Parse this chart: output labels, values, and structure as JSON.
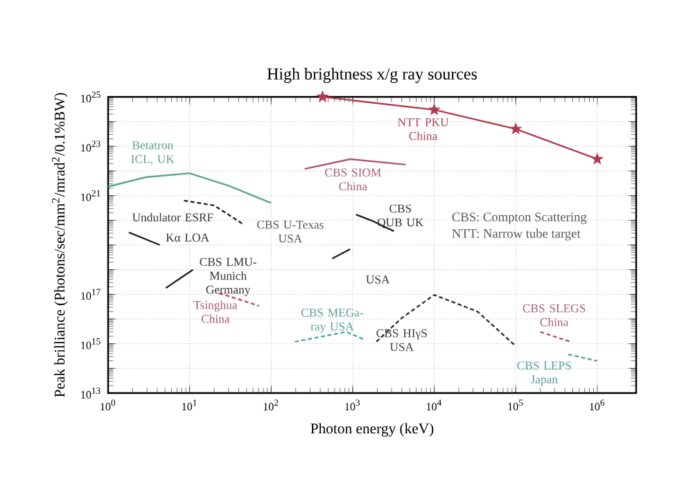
{
  "chart_data": {
    "type": "line",
    "title": "High brightness x/g ray sources",
    "xlabel": "Photon energy (keV)",
    "ylabel": "Peak brilliance (Photons/sec/mm$^{2}$/mrad$^{2}$/0.1%BW)",
    "log": "xy",
    "grid": true,
    "xlim": [
      1,
      3000000
    ],
    "ylim": [
      10000000000000.0,
      1e+25
    ],
    "xticks": [
      {
        "value": 1,
        "label": "10$^{0}$"
      },
      {
        "value": 10,
        "label": "10$^{1}$"
      },
      {
        "value": 100,
        "label": "10$^{2}$"
      },
      {
        "value": 1000,
        "label": "10$^{3}$"
      },
      {
        "value": 10000,
        "label": "10$^{4}$"
      },
      {
        "value": 100000,
        "label": "10$^{5}$"
      },
      {
        "value": 1000000,
        "label": "10$^{6}$"
      }
    ],
    "yticks": [
      {
        "value": 10000000000000.0,
        "label": "10$^{13}$"
      },
      {
        "value": 100000000000000.0,
        "label": null
      },
      {
        "value": 1000000000000000.0,
        "label": "10$^{15}$"
      },
      {
        "value": 1e+16,
        "label": null
      },
      {
        "value": 1e+17,
        "label": "10$^{17}$"
      },
      {
        "value": 1e+18,
        "label": null
      },
      {
        "value": 1e+19,
        "label": null
      },
      {
        "value": 1e+20,
        "label": null
      },
      {
        "value": 1e+21,
        "label": "10$^{21}$"
      },
      {
        "value": 1e+22,
        "label": null
      },
      {
        "value": 1e+23,
        "label": "10$^{23}$"
      },
      {
        "value": 1e+24,
        "label": null
      },
      {
        "value": 1e+25,
        "label": "10$^{25}$"
      }
    ],
    "series": [
      {
        "name": "NTT PKU China",
        "color": "#b03a4e",
        "marker": "star",
        "line_style": "solid",
        "x": [
          427,
          10000,
          100000,
          1000000
        ],
        "values": [
          1e+25,
          3e+24,
          5e+23,
          3e+22
        ]
      },
      {
        "name": "Betatron ICL, UK",
        "color": "#5aa88a",
        "line_style": "solid",
        "x": [
          1,
          2.9,
          10,
          30,
          100
        ],
        "values": [
          2.3e+21,
          5.6e+21,
          8e+21,
          2.5e+21,
          5e+20
        ]
      },
      {
        "name": "CBS SIOM China",
        "color": "#b0566a",
        "line_style": "solid",
        "x": [
          257,
          933,
          4470
        ],
        "values": [
          1.2e+22,
          3e+22,
          1.8e+22
        ]
      },
      {
        "name": "Undulator ESRF",
        "color": "#222222",
        "line_style": "dashed",
        "x": [
          8.5,
          20,
          45
        ],
        "values": [
          6.3e+20,
          4e+20,
          7e+19
        ]
      },
      {
        "name": "Kα LOA",
        "color": "#222222",
        "line_style": "solid",
        "x": [
          1.8,
          4.3
        ],
        "values": [
          3.2e+19,
          1e+19
        ]
      },
      {
        "name": "CBS LMU-Munich Germany",
        "color": "#222222",
        "line_style": "solid",
        "x": [
          5.1,
          11
        ],
        "values": [
          1.8e+17,
          1e+18
        ]
      },
      {
        "name": "CBS QUB UK",
        "color": "#222222",
        "line_style": "solid",
        "x": [
          1100,
          1800,
          3200
        ],
        "values": [
          1.7e+20,
          9e+19,
          3.6e+19
        ]
      },
      {
        "name": "USA",
        "color": "#222222",
        "line_style": "solid",
        "x": [
          560,
          930
        ],
        "values": [
          2.8e+18,
          6.8e+18
        ]
      },
      {
        "name": "Tsinghua China",
        "color": "#b0566a",
        "line_style": "dashed",
        "x": [
          23,
          40,
          71
        ],
        "values": [
          1.1e+17,
          6.3e+16,
          3.4e+16
        ]
      },
      {
        "name": "CBS MEGa-ray USA",
        "color": "#4aa89a",
        "line_style": "dashed",
        "x": [
          195,
          830,
          1380
        ],
        "values": [
          1200000000000000.0,
          3000000000000000.0,
          1500000000000000.0
        ]
      },
      {
        "name": "CBS HIγS USA",
        "color": "#333333",
        "line_style": "dashed",
        "x": [
          1950,
          4000,
          10000,
          34000,
          100000
        ],
        "values": [
          1200000000000000.0,
          1.1e+16,
          9.5e+16,
          2e+16,
          800000000000000.0
        ]
      },
      {
        "name": "CBS SLEGS China",
        "color": "#b0566a",
        "line_style": "dashed",
        "x": [
          200000,
          470000
        ],
        "values": [
          3000000000000000.0,
          1200000000000000.0
        ]
      },
      {
        "name": "CBS LEPS Japan",
        "color": "#4aa89a",
        "line_style": "dashed",
        "x": [
          440000,
          1000000
        ],
        "values": [
          370000000000000.0,
          200000000000000.0
        ]
      }
    ],
    "annotations": [
      "CBS U-Texas USA",
      "CBS: Compton Scattering",
      "NTT: Narrow tube target"
    ]
  }
}
